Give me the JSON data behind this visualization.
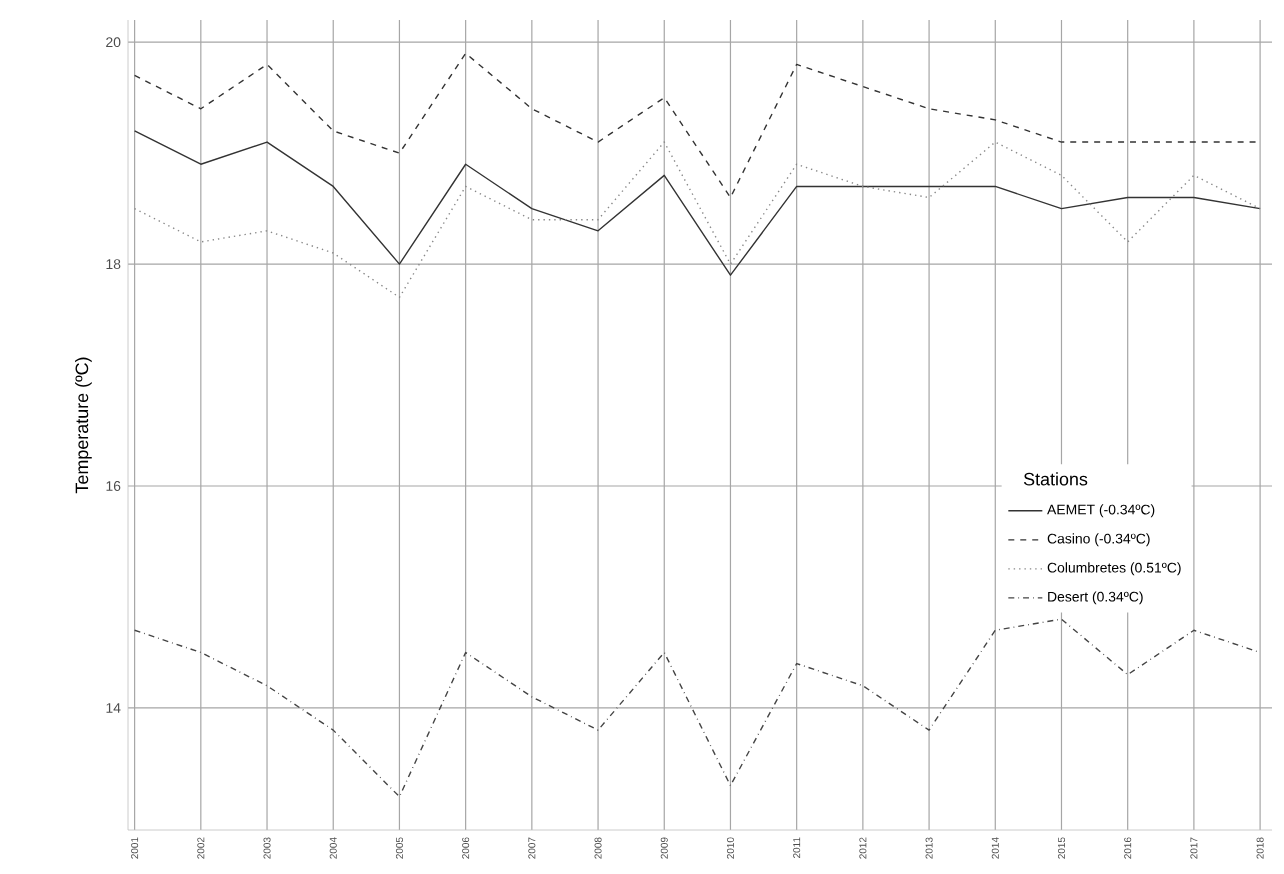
{
  "chart_data": {
    "type": "line",
    "ylabel": "Temperature (ºC)",
    "legend_title": "Stations",
    "categories": [
      "2001",
      "2002",
      "2003",
      "2004",
      "2005",
      "2006",
      "2007",
      "2008",
      "2009",
      "2010",
      "2011",
      "2012",
      "2013",
      "2014",
      "2015",
      "2016",
      "2017",
      "2018"
    ],
    "series": [
      {
        "name": "AEMET (-0.34ºC)",
        "color": "#333333",
        "line_style": "solid",
        "values": [
          19.2,
          18.9,
          19.1,
          18.7,
          18.0,
          18.9,
          18.5,
          18.3,
          18.8,
          17.9,
          18.7,
          18.7,
          18.7,
          18.7,
          18.5,
          18.6,
          18.6,
          18.5
        ]
      },
      {
        "name": "Casino (-0.34ºC)",
        "color": "#333333",
        "line_style": "dashed",
        "values": [
          19.7,
          19.4,
          19.8,
          19.2,
          19.0,
          19.9,
          19.4,
          19.1,
          19.5,
          18.6,
          19.8,
          19.6,
          19.4,
          19.3,
          19.1,
          19.1,
          19.1,
          19.1
        ]
      },
      {
        "name": "Columbretes (0.51ºC)",
        "color": "#888888",
        "line_style": "dotted",
        "values": [
          18.5,
          18.2,
          18.3,
          18.1,
          17.7,
          18.7,
          18.4,
          18.4,
          19.1,
          18.0,
          18.9,
          18.7,
          18.6,
          19.1,
          18.8,
          18.2,
          18.8,
          18.5
        ]
      },
      {
        "name": "Desert (0.34ºC)",
        "color": "#444444",
        "line_style": "dashdotted",
        "values": [
          14.7,
          14.5,
          14.2,
          13.8,
          13.2,
          14.5,
          14.1,
          13.8,
          14.5,
          13.3,
          14.4,
          14.2,
          13.8,
          14.7,
          14.8,
          14.3,
          14.7,
          14.5
        ]
      }
    ],
    "ylim": [
      12.9,
      20.2
    ],
    "yticks": [
      14,
      16,
      18,
      20
    ],
    "grid": true,
    "legend": "right",
    "marker": "none"
  }
}
